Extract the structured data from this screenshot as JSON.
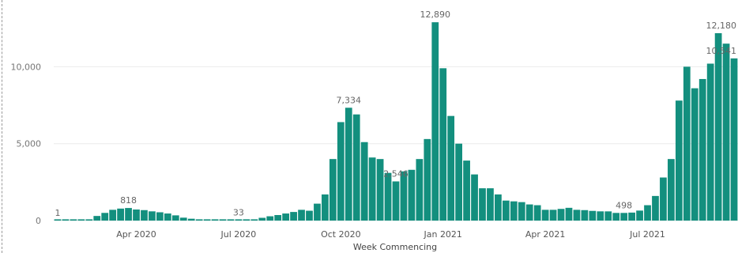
{
  "chart_data": {
    "type": "bar",
    "xlabel": "Week Commencing",
    "ylabel": "",
    "ylim": [
      0,
      13000
    ],
    "grid": true,
    "bar_color": "#138f7e",
    "grid_color": "#ececec",
    "y_ticks": [
      {
        "value": 0,
        "label": "0"
      },
      {
        "value": 5000,
        "label": "5,000"
      },
      {
        "value": 10000,
        "label": "10,000"
      }
    ],
    "x_ticks": [
      {
        "week": "2020-04-06",
        "label": "Apr 2020"
      },
      {
        "week": "2020-07-06",
        "label": "Jul 2020"
      },
      {
        "week": "2020-10-05",
        "label": "Oct 2020"
      },
      {
        "week": "2021-01-04",
        "label": "Jan 2021"
      },
      {
        "week": "2021-04-05",
        "label": "Apr 2021"
      },
      {
        "week": "2021-07-05",
        "label": "Jul 2021"
      }
    ],
    "weeks": [
      "2020-01-27",
      "2020-02-03",
      "2020-02-10",
      "2020-02-17",
      "2020-02-24",
      "2020-03-02",
      "2020-03-09",
      "2020-03-16",
      "2020-03-23",
      "2020-03-30",
      "2020-04-06",
      "2020-04-13",
      "2020-04-20",
      "2020-04-27",
      "2020-05-04",
      "2020-05-11",
      "2020-05-18",
      "2020-05-25",
      "2020-06-01",
      "2020-06-08",
      "2020-06-15",
      "2020-06-22",
      "2020-06-29",
      "2020-07-06",
      "2020-07-13",
      "2020-07-20",
      "2020-07-27",
      "2020-08-03",
      "2020-08-10",
      "2020-08-17",
      "2020-08-24",
      "2020-08-31",
      "2020-09-07",
      "2020-09-14",
      "2020-09-21",
      "2020-09-28",
      "2020-10-05",
      "2020-10-12",
      "2020-10-19",
      "2020-10-26",
      "2020-11-02",
      "2020-11-09",
      "2020-11-16",
      "2020-11-23",
      "2020-11-30",
      "2020-12-07",
      "2020-12-14",
      "2020-12-21",
      "2020-12-28",
      "2021-01-04",
      "2021-01-11",
      "2021-01-18",
      "2021-01-25",
      "2021-02-01",
      "2021-02-08",
      "2021-02-15",
      "2021-02-22",
      "2021-03-01",
      "2021-03-08",
      "2021-03-15",
      "2021-03-22",
      "2021-03-29",
      "2021-04-05",
      "2021-04-12",
      "2021-04-19",
      "2021-04-26",
      "2021-05-03",
      "2021-05-10",
      "2021-05-17",
      "2021-05-24",
      "2021-05-31",
      "2021-06-07",
      "2021-06-14",
      "2021-06-21",
      "2021-06-28",
      "2021-07-05",
      "2021-07-12",
      "2021-07-19",
      "2021-07-26",
      "2021-08-02",
      "2021-08-09",
      "2021-08-16",
      "2021-08-23",
      "2021-08-30",
      "2021-09-06",
      "2021-09-13",
      "2021-09-20"
    ],
    "values": [
      1,
      5,
      10,
      20,
      60,
      300,
      500,
      700,
      780,
      818,
      720,
      680,
      600,
      540,
      460,
      340,
      190,
      120,
      80,
      60,
      45,
      40,
      35,
      33,
      40,
      70,
      180,
      280,
      360,
      460,
      560,
      700,
      640,
      1100,
      1700,
      4000,
      6400,
      7334,
      6900,
      5100,
      4100,
      4000,
      3100,
      2546,
      3200,
      3300,
      4000,
      5300,
      12890,
      9900,
      6800,
      5000,
      3900,
      3000,
      2100,
      2100,
      1700,
      1300,
      1250,
      1200,
      1050,
      1000,
      700,
      700,
      760,
      830,
      700,
      680,
      630,
      600,
      598,
      498,
      498,
      520,
      650,
      1000,
      1600,
      2800,
      4000,
      7800,
      10000,
      8600,
      9200,
      10200,
      12180,
      11500,
      10541
    ],
    "data_labels": [
      {
        "index": 0,
        "text": "1"
      },
      {
        "index": 9,
        "text": "818"
      },
      {
        "index": 23,
        "text": "33"
      },
      {
        "index": 37,
        "text": "7,334"
      },
      {
        "index": 43,
        "text": "2,546"
      },
      {
        "index": 48,
        "text": "12,890"
      },
      {
        "index": 72,
        "text": "498"
      },
      {
        "index": 84,
        "text": "12,180"
      },
      {
        "index": 86,
        "text": "10,541"
      }
    ]
  }
}
